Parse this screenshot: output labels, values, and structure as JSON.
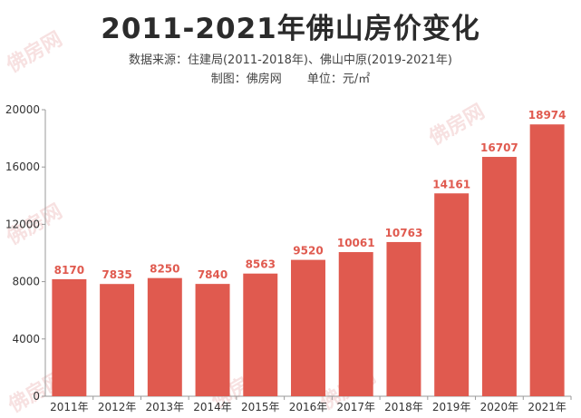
{
  "chart_data": {
    "type": "bar",
    "title": "2011-2021年佛山房价变化",
    "subtitle_source": "数据来源：住建局(2011-2018年)、佛山中原(2019-2021年)",
    "credit_maker": "制图：佛房网",
    "credit_unit": "单位：元/㎡",
    "categories": [
      "2011年",
      "2012年",
      "2013年",
      "2014年",
      "2015年",
      "2016年",
      "2017年",
      "2018年",
      "2019年",
      "2020年",
      "2021年"
    ],
    "values": [
      8170,
      7835,
      8250,
      7840,
      8563,
      9520,
      10061,
      10763,
      14161,
      16707,
      18974
    ],
    "ylim": [
      0,
      20000
    ],
    "yticks": [
      0,
      4000,
      8000,
      12000,
      16000,
      20000
    ],
    "grid": false,
    "bar_color": "#e05a4f",
    "label_color": "#e05a4f"
  },
  "watermark": "佛房网"
}
